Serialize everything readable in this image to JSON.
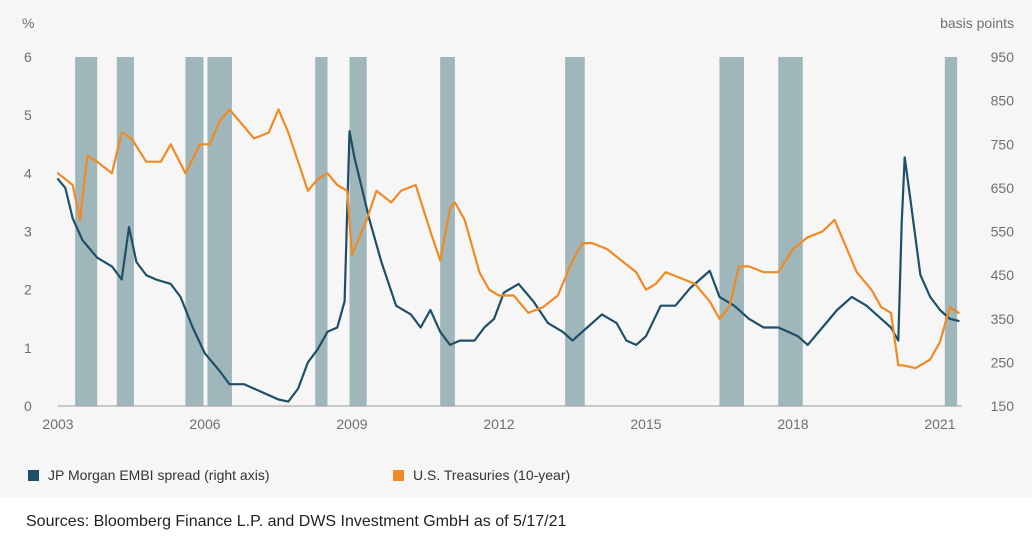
{
  "chart_data": {
    "type": "line",
    "left_axis_unit": "%",
    "right_axis_unit": "basis points",
    "left_axis": {
      "range": [
        0,
        6
      ],
      "ticks": [
        "0",
        "1",
        "2",
        "3",
        "4",
        "5",
        "6"
      ]
    },
    "right_axis": {
      "range": [
        150,
        950
      ],
      "ticks": [
        "150",
        "250",
        "350",
        "450",
        "550",
        "650",
        "750",
        "850",
        "950"
      ]
    },
    "x_axis": {
      "range": [
        2003.0,
        2021.45
      ],
      "ticks": [
        "2003",
        "2006",
        "2009",
        "2012",
        "2015",
        "2018",
        "2021"
      ]
    },
    "grid": false,
    "legend_position": "bottom",
    "shaded_periods": [
      [
        2003.35,
        2003.8
      ],
      [
        2004.2,
        2004.55
      ],
      [
        2005.6,
        2005.97
      ],
      [
        2006.05,
        2006.55
      ],
      [
        2008.25,
        2008.5
      ],
      [
        2008.95,
        2009.3
      ],
      [
        2010.8,
        2011.1
      ],
      [
        2013.35,
        2013.75
      ],
      [
        2016.5,
        2017.0
      ],
      [
        2017.7,
        2018.2
      ],
      [
        2021.1,
        2021.35
      ]
    ],
    "series": [
      {
        "name": "JP Morgan EMBI spread (right axis)",
        "axis": "right",
        "color": "#1f4f68",
        "x": [
          2003.0,
          2003.15,
          2003.3,
          2003.5,
          2003.8,
          2004.1,
          2004.3,
          2004.45,
          2004.6,
          2004.8,
          2005.0,
          2005.3,
          2005.5,
          2005.75,
          2006.0,
          2006.3,
          2006.5,
          2006.8,
          2007.0,
          2007.3,
          2007.5,
          2007.7,
          2007.9,
          2008.1,
          2008.3,
          2008.5,
          2008.7,
          2008.85,
          2008.95,
          2009.05,
          2009.2,
          2009.35,
          2009.6,
          2009.9,
          2010.2,
          2010.4,
          2010.6,
          2010.8,
          2011.0,
          2011.2,
          2011.5,
          2011.7,
          2011.9,
          2012.1,
          2012.4,
          2012.7,
          2013.0,
          2013.3,
          2013.5,
          2013.8,
          2014.1,
          2014.4,
          2014.6,
          2014.8,
          2015.0,
          2015.3,
          2015.6,
          2015.9,
          2016.1,
          2016.3,
          2016.5,
          2016.8,
          2017.1,
          2017.4,
          2017.7,
          2017.9,
          2018.1,
          2018.3,
          2018.6,
          2018.9,
          2019.2,
          2019.5,
          2019.8,
          2020.0,
          2020.15,
          2020.22,
          2020.28,
          2020.4,
          2020.6,
          2020.8,
          2021.0,
          2021.2,
          2021.38
        ],
        "y": [
          670,
          650,
          580,
          530,
          490,
          470,
          440,
          560,
          480,
          450,
          440,
          430,
          400,
          330,
          270,
          230,
          200,
          200,
          190,
          175,
          165,
          160,
          190,
          250,
          280,
          320,
          330,
          390,
          780,
          720,
          650,
          580,
          480,
          380,
          360,
          330,
          370,
          320,
          290,
          300,
          300,
          330,
          350,
          410,
          430,
          390,
          340,
          320,
          300,
          330,
          360,
          340,
          300,
          290,
          310,
          380,
          380,
          420,
          440,
          460,
          400,
          380,
          350,
          330,
          330,
          320,
          310,
          290,
          330,
          370,
          400,
          380,
          350,
          330,
          300,
          570,
          720,
          620,
          450,
          400,
          370,
          350,
          345
        ]
      },
      {
        "name": "U.S. Treasuries (10-year)",
        "axis": "left",
        "color": "#f08a24",
        "x": [
          2003.0,
          2003.3,
          2003.45,
          2003.6,
          2003.8,
          2004.1,
          2004.3,
          2004.5,
          2004.8,
          2005.1,
          2005.3,
          2005.6,
          2005.9,
          2006.1,
          2006.3,
          2006.5,
          2006.8,
          2007.0,
          2007.3,
          2007.5,
          2007.7,
          2007.9,
          2008.1,
          2008.3,
          2008.5,
          2008.7,
          2008.9,
          2009.0,
          2009.1,
          2009.3,
          2009.5,
          2009.8,
          2010.0,
          2010.3,
          2010.6,
          2010.8,
          2011.0,
          2011.1,
          2011.3,
          2011.6,
          2011.8,
          2012.0,
          2012.3,
          2012.6,
          2012.9,
          2013.2,
          2013.5,
          2013.7,
          2013.9,
          2014.2,
          2014.5,
          2014.8,
          2015.0,
          2015.2,
          2015.4,
          2015.7,
          2016.0,
          2016.3,
          2016.5,
          2016.7,
          2016.9,
          2017.1,
          2017.4,
          2017.7,
          2018.0,
          2018.3,
          2018.6,
          2018.85,
          2019.1,
          2019.3,
          2019.6,
          2019.8,
          2020.0,
          2020.15,
          2020.25,
          2020.5,
          2020.8,
          2021.0,
          2021.2,
          2021.38
        ],
        "y": [
          4.0,
          3.8,
          3.2,
          4.3,
          4.2,
          4.0,
          4.7,
          4.6,
          4.2,
          4.2,
          4.5,
          4.0,
          4.5,
          4.5,
          4.9,
          5.1,
          4.8,
          4.6,
          4.7,
          5.1,
          4.7,
          4.2,
          3.7,
          3.9,
          4.0,
          3.8,
          3.7,
          2.6,
          2.8,
          3.2,
          3.7,
          3.5,
          3.7,
          3.8,
          3.0,
          2.5,
          3.4,
          3.5,
          3.2,
          2.3,
          2.0,
          1.9,
          1.9,
          1.6,
          1.7,
          1.9,
          2.5,
          2.8,
          2.8,
          2.7,
          2.5,
          2.3,
          2.0,
          2.1,
          2.3,
          2.2,
          2.1,
          1.8,
          1.5,
          1.7,
          2.4,
          2.4,
          2.3,
          2.3,
          2.7,
          2.9,
          3.0,
          3.2,
          2.7,
          2.3,
          2.0,
          1.7,
          1.6,
          0.7,
          0.7,
          0.65,
          0.8,
          1.1,
          1.7,
          1.6
        ]
      }
    ]
  },
  "legend": {
    "embi_label": "JP Morgan EMBI spread (right axis)",
    "treasury_label": "U.S. Treasuries (10-year)"
  },
  "colors": {
    "embi": "#1f4f68",
    "treasury": "#f08a24",
    "shading": "#9fb6bb",
    "axis_text": "#707070"
  },
  "source_note": "Sources: Bloomberg Finance L.P. and DWS Investment GmbH as of 5/17/21"
}
